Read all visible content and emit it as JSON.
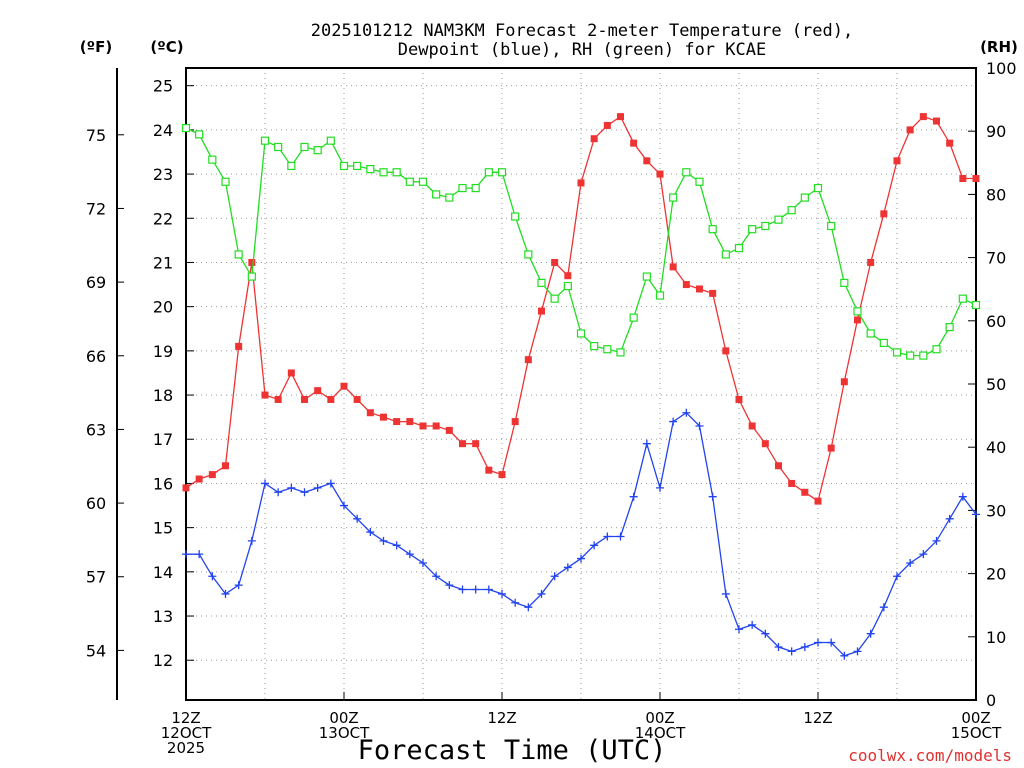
{
  "chart_data": {
    "type": "line",
    "title_line1": "2025101212 NAM3KM Forecast 2-meter Temperature (red),",
    "title_line2": "Dewpoint (blue), RH (green) for KCAE",
    "left_unit_f": "(ºF)",
    "left_unit_c": "(ºC)",
    "right_unit": "(RH)",
    "xlabel": "Forecast Time (UTC)",
    "credit": "coolwx.com/models",
    "xlim": [
      0,
      60
    ],
    "ylim_c": [
      11.1,
      25.4
    ],
    "ylim_rh": [
      0,
      100
    ],
    "c_ticks": [
      12,
      13,
      14,
      15,
      16,
      17,
      18,
      19,
      20,
      21,
      22,
      23,
      24,
      25
    ],
    "f_ticks": [
      54,
      57,
      60,
      63,
      66,
      69,
      72,
      75
    ],
    "rh_ticks": [
      0,
      10,
      20,
      30,
      40,
      50,
      60,
      70,
      80,
      90,
      100
    ],
    "x_ticks": [
      {
        "x": 0,
        "lines": [
          "12Z",
          "12OCT",
          "2025"
        ]
      },
      {
        "x": 12,
        "lines": [
          "00Z",
          "13OCT"
        ]
      },
      {
        "x": 24,
        "lines": [
          "12Z"
        ]
      },
      {
        "x": 36,
        "lines": [
          "00Z",
          "14OCT"
        ]
      },
      {
        "x": 48,
        "lines": [
          "12Z"
        ]
      },
      {
        "x": 60,
        "lines": [
          "00Z",
          "15OCT"
        ]
      }
    ],
    "x": [
      0,
      1,
      2,
      3,
      4,
      5,
      6,
      7,
      8,
      9,
      10,
      11,
      12,
      13,
      14,
      15,
      16,
      17,
      18,
      19,
      20,
      21,
      22,
      23,
      24,
      25,
      26,
      27,
      28,
      29,
      30,
      31,
      32,
      33,
      34,
      35,
      36,
      37,
      38,
      39,
      40,
      41,
      42,
      43,
      44,
      45,
      46,
      47,
      48,
      49,
      50,
      51,
      52,
      53,
      54,
      55,
      56,
      57,
      58,
      59,
      60
    ],
    "series": [
      {
        "name": "Temperature",
        "unit": "C",
        "color": "#ee3333",
        "marker": "filled-square",
        "values": [
          15.9,
          16.1,
          16.2,
          16.4,
          19.1,
          21.0,
          18.0,
          17.9,
          18.5,
          17.9,
          18.1,
          17.9,
          18.2,
          17.9,
          17.6,
          17.5,
          17.4,
          17.4,
          17.3,
          17.3,
          17.2,
          16.9,
          16.9,
          16.3,
          16.2,
          17.4,
          18.8,
          19.9,
          21.0,
          20.7,
          22.8,
          23.8,
          24.1,
          24.3,
          23.7,
          23.3,
          23.0,
          20.9,
          20.5,
          20.4,
          20.3,
          19.0,
          17.9,
          17.3,
          16.9,
          16.4,
          16.0,
          15.8,
          15.6,
          16.8,
          18.3,
          19.7,
          21.0,
          22.1,
          23.3,
          24.0,
          24.3,
          24.2,
          23.7,
          22.9,
          22.9
        ]
      },
      {
        "name": "Dewpoint",
        "unit": "C",
        "color": "#2244ee",
        "marker": "plus",
        "values": [
          14.4,
          14.4,
          13.9,
          13.5,
          13.7,
          14.7,
          16.0,
          15.8,
          15.9,
          15.8,
          15.9,
          16.0,
          15.5,
          15.2,
          14.9,
          14.7,
          14.6,
          14.4,
          14.2,
          13.9,
          13.7,
          13.6,
          13.6,
          13.6,
          13.5,
          13.3,
          13.2,
          13.5,
          13.9,
          14.1,
          14.3,
          14.6,
          14.8,
          14.8,
          15.7,
          16.9,
          15.9,
          17.4,
          17.6,
          17.3,
          15.7,
          13.5,
          12.7,
          12.8,
          12.6,
          12.3,
          12.2,
          12.3,
          12.4,
          12.4,
          12.1,
          12.2,
          12.6,
          13.2,
          13.9,
          14.2,
          14.4,
          14.7,
          15.2,
          15.7,
          15.3
        ]
      },
      {
        "name": "RH",
        "unit": "%",
        "color": "#22dd22",
        "marker": "open-square",
        "values": [
          90.5,
          89.5,
          85.5,
          82,
          70.5,
          67,
          88.5,
          87.5,
          84.5,
          87.5,
          87,
          88.5,
          84.5,
          84.5,
          84,
          83.5,
          83.5,
          82,
          82,
          80,
          79.5,
          81,
          81,
          83.5,
          83.5,
          76.5,
          70.5,
          66,
          63.5,
          65.5,
          58,
          56,
          55.5,
          55,
          60.5,
          67,
          64,
          79.5,
          83.5,
          82,
          74.5,
          70.5,
          71.5,
          74.5,
          75,
          76,
          77.5,
          79.5,
          81,
          75,
          66,
          61.5,
          58,
          56.5,
          55,
          54.5,
          54.5,
          55.5,
          59,
          63.5,
          62.5
        ]
      }
    ]
  }
}
